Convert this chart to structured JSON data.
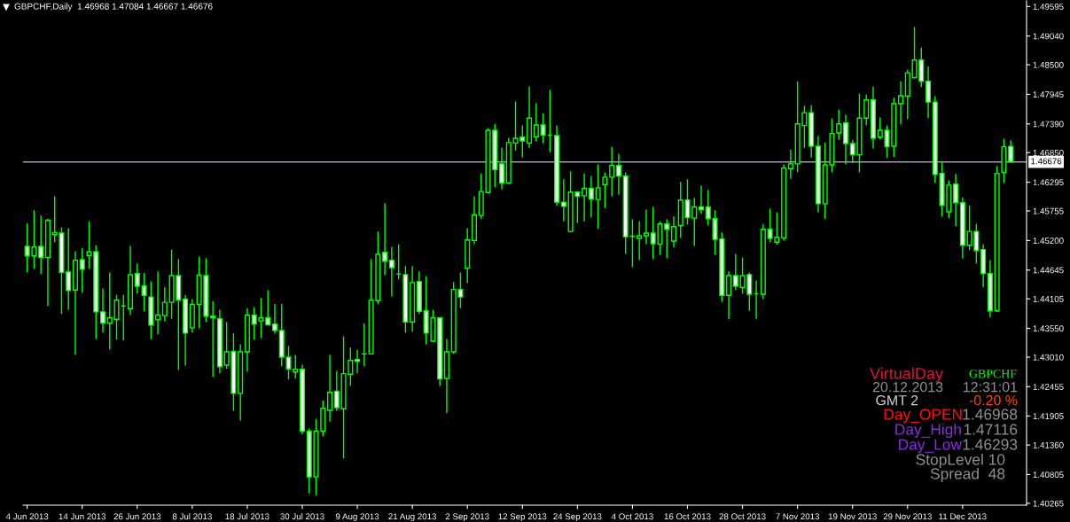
{
  "chart_data": {
    "type": "candlestick",
    "title": "GBPCHF,Daily  1.46968 1.47084 1.46667 1.46676",
    "color": "#00ff00",
    "categories": [
      "4 Jun 2013",
      null,
      null,
      null,
      null,
      null,
      null,
      null,
      "14 Jun 2013",
      null,
      null,
      null,
      null,
      null,
      null,
      null,
      "26 Jun 2013",
      null,
      null,
      null,
      null,
      null,
      null,
      null,
      "8 Jul 2013",
      null,
      null,
      null,
      null,
      null,
      null,
      null,
      "18 Jul 2013",
      null,
      null,
      null,
      null,
      null,
      null,
      null,
      "30 Jul 2013",
      null,
      null,
      null,
      null,
      null,
      null,
      null,
      "9 Aug 2013",
      null,
      null,
      null,
      null,
      null,
      null,
      null,
      "21 Aug 2013",
      null,
      null,
      null,
      null,
      null,
      null,
      null,
      "2 Sep 2013",
      null,
      null,
      null,
      null,
      null,
      null,
      null,
      "12 Sep 2013",
      null,
      null,
      null,
      null,
      null,
      null,
      null,
      "24 Sep 2013",
      null,
      null,
      null,
      null,
      null,
      null,
      null,
      "4 Oct 2013",
      null,
      null,
      null,
      null,
      null,
      null,
      null,
      "16 Oct 2013",
      null,
      null,
      null,
      null,
      null,
      null,
      null,
      "28 Oct 2013",
      null,
      null,
      null,
      null,
      null,
      null,
      null,
      "7 Nov 2013",
      null,
      null,
      null,
      null,
      null,
      null,
      null,
      "19 Nov 2013",
      null,
      null,
      null,
      null,
      null,
      null,
      null,
      "29 Nov 2013",
      null,
      null,
      null,
      null,
      null,
      null,
      null,
      "11 Dec 2013",
      null,
      null,
      null,
      null,
      null,
      null,
      null
    ],
    "ohlc": [
      [
        1.4509,
        1.4552,
        1.446,
        1.4491
      ],
      [
        1.4491,
        1.4577,
        1.4467,
        1.4508
      ],
      [
        1.4509,
        1.4567,
        1.4457,
        1.4488
      ],
      [
        1.4488,
        1.4561,
        1.4397,
        1.4558
      ],
      [
        1.4531,
        1.4603,
        1.4517,
        1.4535
      ],
      [
        1.4534,
        1.4545,
        1.4382,
        1.446
      ],
      [
        1.4461,
        1.4543,
        1.439,
        1.4426
      ],
      [
        1.4427,
        1.45,
        1.4305,
        1.4483
      ],
      [
        1.4484,
        1.4506,
        1.4422,
        1.4466
      ],
      [
        1.4492,
        1.4556,
        1.4467,
        1.4499
      ],
      [
        1.4499,
        1.4511,
        1.4335,
        1.4386
      ],
      [
        1.4386,
        1.443,
        1.4347,
        1.4365
      ],
      [
        1.4365,
        1.446,
        1.4315,
        1.4375
      ],
      [
        1.4372,
        1.4418,
        1.4334,
        1.4408
      ],
      [
        1.4397,
        1.4418,
        1.4332,
        1.4397
      ],
      [
        1.4392,
        1.451,
        1.438,
        1.4456
      ],
      [
        1.4458,
        1.4477,
        1.442,
        1.4434
      ],
      [
        1.4435,
        1.4459,
        1.4387,
        1.4417
      ],
      [
        1.4414,
        1.4443,
        1.4335,
        1.4361
      ],
      [
        1.4371,
        1.4462,
        1.4344,
        1.438
      ],
      [
        1.4379,
        1.4432,
        1.4368,
        1.4404
      ],
      [
        1.4404,
        1.4503,
        1.4373,
        1.4454
      ],
      [
        1.4454,
        1.4485,
        1.4277,
        1.4408
      ],
      [
        1.441,
        1.4418,
        1.4285,
        1.4346
      ],
      [
        1.4356,
        1.441,
        1.4347,
        1.44
      ],
      [
        1.44,
        1.449,
        1.4355,
        1.4455
      ],
      [
        1.4454,
        1.4487,
        1.4367,
        1.4378
      ],
      [
        1.4378,
        1.4406,
        1.4264,
        1.4375
      ],
      [
        1.4373,
        1.439,
        1.4271,
        1.4283
      ],
      [
        1.4286,
        1.4367,
        1.4279,
        1.4311
      ],
      [
        1.4312,
        1.4346,
        1.42,
        1.4233
      ],
      [
        1.4233,
        1.4325,
        1.4182,
        1.4311
      ],
      [
        1.4311,
        1.4393,
        1.4274,
        1.438
      ],
      [
        1.438,
        1.4395,
        1.4334,
        1.4363
      ],
      [
        1.4369,
        1.4412,
        1.4337,
        1.4375
      ],
      [
        1.4375,
        1.4427,
        1.4362,
        1.4362
      ],
      [
        1.4363,
        1.4401,
        1.4345,
        1.4351
      ],
      [
        1.4351,
        1.4401,
        1.4284,
        1.4301
      ],
      [
        1.4301,
        1.4322,
        1.4259,
        1.4279
      ],
      [
        1.4273,
        1.4305,
        1.4261,
        1.4278
      ],
      [
        1.4278,
        1.4287,
        1.4156,
        1.4162
      ],
      [
        1.4162,
        1.4167,
        1.4045,
        1.4076
      ],
      [
        1.4076,
        1.4185,
        1.4042,
        1.4162
      ],
      [
        1.4162,
        1.422,
        1.4152,
        1.4205
      ],
      [
        1.4201,
        1.4305,
        1.418,
        1.4235
      ],
      [
        1.4237,
        1.4275,
        1.42,
        1.4206
      ],
      [
        1.4204,
        1.434,
        1.4111,
        1.427
      ],
      [
        1.4269,
        1.4319,
        1.4247,
        1.4295
      ],
      [
        1.4297,
        1.4315,
        1.4271,
        1.4293
      ],
      [
        1.4307,
        1.4364,
        1.4284,
        1.4307
      ],
      [
        1.4307,
        1.4485,
        1.4306,
        1.4408
      ],
      [
        1.4407,
        1.4537,
        1.4401,
        1.4494
      ],
      [
        1.4498,
        1.459,
        1.4455,
        1.4481
      ],
      [
        1.4483,
        1.4508,
        1.4415,
        1.4469
      ],
      [
        1.4457,
        1.4513,
        1.4447,
        1.4457
      ],
      [
        1.4456,
        1.4472,
        1.4347,
        1.4367
      ],
      [
        1.4367,
        1.4472,
        1.4349,
        1.4441
      ],
      [
        1.4443,
        1.4462,
        1.4382,
        1.4387
      ],
      [
        1.4388,
        1.4453,
        1.4325,
        1.4346
      ],
      [
        1.4331,
        1.439,
        1.4329,
        1.4375
      ],
      [
        1.4375,
        1.4375,
        1.4247,
        1.426
      ],
      [
        1.4261,
        1.4335,
        1.4196,
        1.4311
      ],
      [
        1.4311,
        1.4442,
        1.4307,
        1.4428
      ],
      [
        1.4428,
        1.446,
        1.4393,
        1.4414
      ],
      [
        1.4468,
        1.4543,
        1.444,
        1.4521
      ],
      [
        1.452,
        1.4603,
        1.4513,
        1.4568
      ],
      [
        1.4567,
        1.4646,
        1.4561,
        1.4612
      ],
      [
        1.461,
        1.4731,
        1.4608,
        1.4727
      ],
      [
        1.4727,
        1.4739,
        1.462,
        1.4653
      ],
      [
        1.4664,
        1.4694,
        1.4616,
        1.4628
      ],
      [
        1.4628,
        1.4713,
        1.4626,
        1.4704
      ],
      [
        1.4703,
        1.4781,
        1.4689,
        1.4712
      ],
      [
        1.4714,
        1.4736,
        1.4676,
        1.4707
      ],
      [
        1.4703,
        1.4809,
        1.4694,
        1.475
      ],
      [
        1.4715,
        1.4778,
        1.4706,
        1.4737
      ],
      [
        1.4737,
        1.4759,
        1.4703,
        1.4718
      ],
      [
        1.4718,
        1.4803,
        1.4686,
        1.4718
      ],
      [
        1.4717,
        1.4736,
        1.4585,
        1.4592
      ],
      [
        1.4592,
        1.4635,
        1.4556,
        1.4584
      ],
      [
        1.4537,
        1.465,
        1.4535,
        1.4611
      ],
      [
        1.4611,
        1.4613,
        1.4553,
        1.4603
      ],
      [
        1.4604,
        1.4646,
        1.4556,
        1.4618
      ],
      [
        1.4618,
        1.4641,
        1.4563,
        1.4598
      ],
      [
        1.4597,
        1.4663,
        1.4542,
        1.4619
      ],
      [
        1.4625,
        1.4648,
        1.4581,
        1.4639
      ],
      [
        1.4639,
        1.4696,
        1.4603,
        1.4661
      ],
      [
        1.4661,
        1.4683,
        1.4606,
        1.4641
      ],
      [
        1.4641,
        1.4648,
        1.4495,
        1.4527
      ],
      [
        1.4528,
        1.456,
        1.447,
        1.4528
      ],
      [
        1.4524,
        1.4556,
        1.4483,
        1.4529
      ],
      [
        1.4529,
        1.4578,
        1.4513,
        1.4534
      ],
      [
        1.4534,
        1.4583,
        1.4485,
        1.4514
      ],
      [
        1.4513,
        1.4556,
        1.4493,
        1.4551
      ],
      [
        1.4551,
        1.456,
        1.4487,
        1.4541
      ],
      [
        1.4519,
        1.4565,
        1.4507,
        1.4546
      ],
      [
        1.4548,
        1.463,
        1.4525,
        1.4596
      ],
      [
        1.4596,
        1.4635,
        1.455,
        1.4563
      ],
      [
        1.4562,
        1.46,
        1.451,
        1.4583
      ],
      [
        1.4583,
        1.4623,
        1.457,
        1.4578
      ],
      [
        1.4583,
        1.4615,
        1.4548,
        1.4561
      ],
      [
        1.4561,
        1.4577,
        1.4493,
        1.4522
      ],
      [
        1.4523,
        1.4535,
        1.4405,
        1.4417
      ],
      [
        1.4417,
        1.4462,
        1.4372,
        1.4454
      ],
      [
        1.4454,
        1.4495,
        1.4427,
        1.4434
      ],
      [
        1.4432,
        1.4488,
        1.442,
        1.4454
      ],
      [
        1.4456,
        1.446,
        1.4388,
        1.4419
      ],
      [
        1.442,
        1.4445,
        1.4373,
        1.442
      ],
      [
        1.4419,
        1.4551,
        1.441,
        1.4541
      ],
      [
        1.4541,
        1.458,
        1.4517,
        1.4524
      ],
      [
        1.4517,
        1.4573,
        1.4512,
        1.4526
      ],
      [
        1.4525,
        1.4663,
        1.452,
        1.4656
      ],
      [
        1.4655,
        1.4691,
        1.4636,
        1.4664
      ],
      [
        1.4664,
        1.4819,
        1.4648,
        1.4739
      ],
      [
        1.4736,
        1.4773,
        1.4694,
        1.476
      ],
      [
        1.476,
        1.4774,
        1.4676,
        1.4697
      ],
      [
        1.4697,
        1.4716,
        1.4573,
        1.4589
      ],
      [
        1.4589,
        1.4704,
        1.4561,
        1.4662
      ],
      [
        1.4662,
        1.4749,
        1.4648,
        1.4721
      ],
      [
        1.4722,
        1.4766,
        1.4709,
        1.4739
      ],
      [
        1.4741,
        1.4756,
        1.4663,
        1.4702
      ],
      [
        1.4702,
        1.4709,
        1.4665,
        1.4681
      ],
      [
        1.4681,
        1.4796,
        1.4648,
        1.475
      ],
      [
        1.475,
        1.4794,
        1.4736,
        1.4784
      ],
      [
        1.4784,
        1.4809,
        1.4693,
        1.4712
      ],
      [
        1.4714,
        1.4751,
        1.471,
        1.4727
      ],
      [
        1.4727,
        1.4736,
        1.4675,
        1.4696
      ],
      [
        1.4697,
        1.4788,
        1.4677,
        1.4777
      ],
      [
        1.4777,
        1.4819,
        1.4738,
        1.4792
      ],
      [
        1.4791,
        1.4841,
        1.4748,
        1.4835
      ],
      [
        1.4826,
        1.4921,
        1.4824,
        1.4859
      ],
      [
        1.4859,
        1.4882,
        1.4808,
        1.4819
      ],
      [
        1.4819,
        1.4847,
        1.475,
        1.478
      ],
      [
        1.478,
        1.4791,
        1.4628,
        1.4644
      ],
      [
        1.4646,
        1.4667,
        1.4565,
        1.4586
      ],
      [
        1.4574,
        1.4633,
        1.4562,
        1.4624
      ],
      [
        1.4626,
        1.4645,
        1.4547,
        1.4591
      ],
      [
        1.4591,
        1.4601,
        1.4486,
        1.4511
      ],
      [
        1.4511,
        1.4586,
        1.4502,
        1.4537
      ],
      [
        1.4537,
        1.4551,
        1.4477,
        1.4501
      ],
      [
        1.4503,
        1.4513,
        1.4432,
        1.4458
      ],
      [
        1.4458,
        1.4483,
        1.4376,
        1.4388
      ],
      [
        1.4388,
        1.466,
        1.4386,
        1.4646
      ],
      [
        1.4648,
        1.4711,
        1.4628,
        1.4696
      ],
      [
        1.46968,
        1.47084,
        1.46667,
        1.46676
      ]
    ],
    "ylim": [
      1.4023,
      1.497
    ],
    "yticks": [
      {
        "value": 1.49595,
        "label": "1.49595"
      },
      {
        "value": 1.4904,
        "label": "1.49040"
      },
      {
        "value": 1.485,
        "label": "1.48500"
      },
      {
        "value": 1.47945,
        "label": "1.47945"
      },
      {
        "value": 1.4739,
        "label": "1.47390"
      },
      {
        "value": 1.4685,
        "label": "1.46850"
      },
      {
        "value": 1.46295,
        "label": "1.46295"
      },
      {
        "value": 1.45755,
        "label": "1.45755"
      },
      {
        "value": 1.452,
        "label": "1.45200"
      },
      {
        "value": 1.44645,
        "label": "1.44645"
      },
      {
        "value": 1.44105,
        "label": "1.44105"
      },
      {
        "value": 1.4355,
        "label": "1.43550"
      },
      {
        "value": 1.4301,
        "label": "1.43010"
      },
      {
        "value": 1.42455,
        "label": "1.42455"
      },
      {
        "value": 1.41905,
        "label": "1.41905"
      },
      {
        "value": 1.4136,
        "label": "1.41360"
      },
      {
        "value": 1.40805,
        "label": "1.40805"
      },
      {
        "value": 1.40265,
        "label": "1.40265"
      }
    ],
    "ref_lines": [
      {
        "axis": "y",
        "value": 1.46676,
        "label": "1.46676",
        "color": "#a0a0a8"
      }
    ],
    "grid": false,
    "annotations": [
      "VirtualDay",
      "GBPCHF",
      "20.12.2013",
      "12:31:01",
      "GMT 2",
      "-0.20 %",
      "Day_OPEN",
      "1.46968",
      "Day_High",
      "1.47116",
      "Day_Low",
      "1.46293",
      "StopLevel 10",
      "Spread  48"
    ]
  }
}
